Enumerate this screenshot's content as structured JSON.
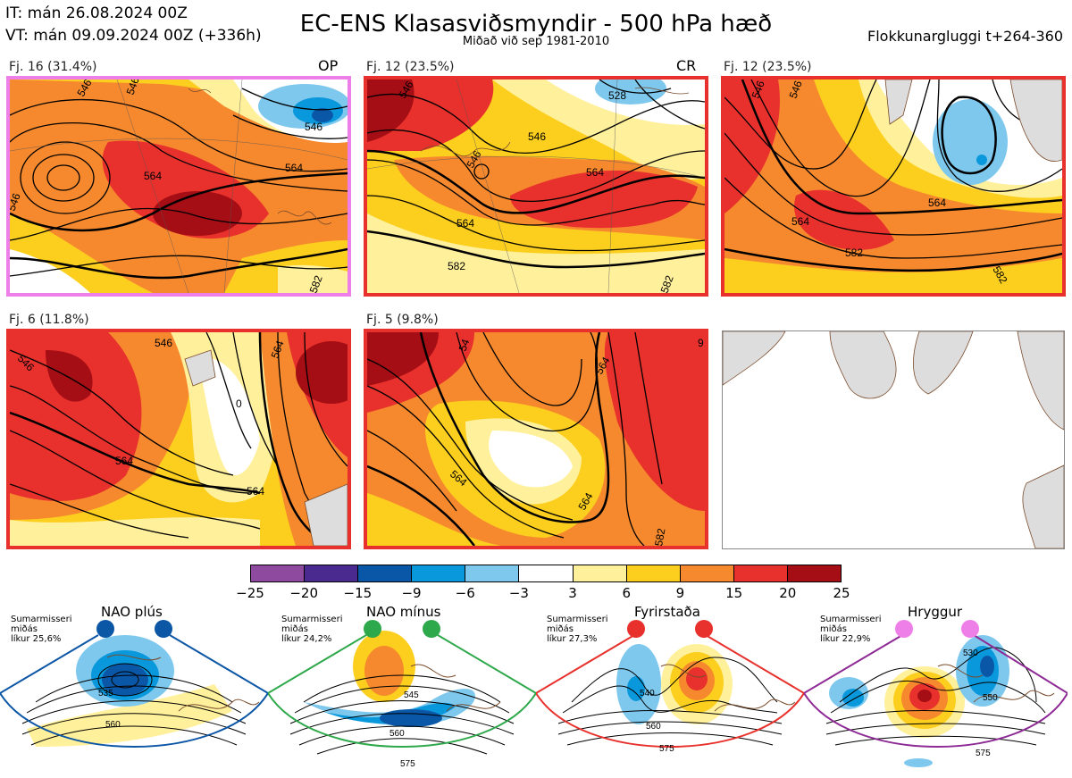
{
  "header": {
    "it": "IT: mán 26.08.2024 00Z",
    "vt": "VT: mán 09.09.2024 00Z  (+336h)",
    "title": "EC-ENS Klasasviðsmyndir - 500 hPa hæð",
    "subtitle": "Miðað við sep 1981-2010",
    "window": "Flokkunargluggi t+264-360"
  },
  "panels": [
    {
      "label": "Fj. 16 (31.4%)",
      "tag": "OP",
      "border": "#ee7ee8",
      "contours": [
        "546",
        "546",
        "546",
        "564",
        "546",
        "564",
        "582"
      ]
    },
    {
      "label": "Fj. 12 (23.5%)",
      "tag": "CR",
      "border": "#e8312c",
      "contours": [
        "546",
        "528",
        "546",
        "546",
        "564",
        "564",
        "582",
        "582"
      ]
    },
    {
      "label": "Fj. 12 (23.5%)",
      "tag": "",
      "border": "#e8312c",
      "contours": [
        "546",
        "546",
        "546",
        "564",
        "564",
        "582",
        "582"
      ]
    },
    {
      "label": "Fj. 6 (11.8%)",
      "tag": "",
      "border": "#e8312c",
      "contours": [
        "546",
        "546",
        "0",
        "564",
        "564",
        "564"
      ]
    },
    {
      "label": "Fj. 5 (9.8%)",
      "tag": "",
      "border": "#e8312c",
      "contours": [
        "54",
        "564",
        "564",
        "564",
        "582",
        "9"
      ]
    }
  ],
  "colorbar": {
    "colors": [
      "#8e4a9e",
      "#4b2a8f",
      "#0a57a8",
      "#0a98dc",
      "#7ec8ee",
      "#ffffff",
      "#fff09c",
      "#fccf1f",
      "#f6892e",
      "#e8312c",
      "#a50e14"
    ],
    "ticks": [
      "−25",
      "−20",
      "−15",
      "−9",
      "−6",
      "−3",
      "3",
      "6",
      "9",
      "15",
      "20",
      "25"
    ]
  },
  "regimes": [
    {
      "title": "NAO plús",
      "season": "Sumarmisseri",
      "median": "miðás",
      "prob": "líkur 25,6%",
      "color": "#0c56a6",
      "labels": [
        "535",
        "560"
      ]
    },
    {
      "title": "NAO mínus",
      "season": "Sumarmisseri",
      "median": "miðás",
      "prob": "líkur 24,2%",
      "color": "#2da84a",
      "labels": [
        "545",
        "560",
        "575"
      ]
    },
    {
      "title": "Fyrirstaða",
      "season": "Sumarmisseri",
      "median": "miðás",
      "prob": "líkur 27,3%",
      "color": "#e8312c",
      "labels": [
        "540",
        "560",
        "575"
      ]
    },
    {
      "title": "Hryggur",
      "season": "Sumarmisseri",
      "median": "miðás",
      "prob": "líkur 22,9%",
      "color": "#8e2a96",
      "labels": [
        "530",
        "550",
        "575"
      ]
    }
  ]
}
